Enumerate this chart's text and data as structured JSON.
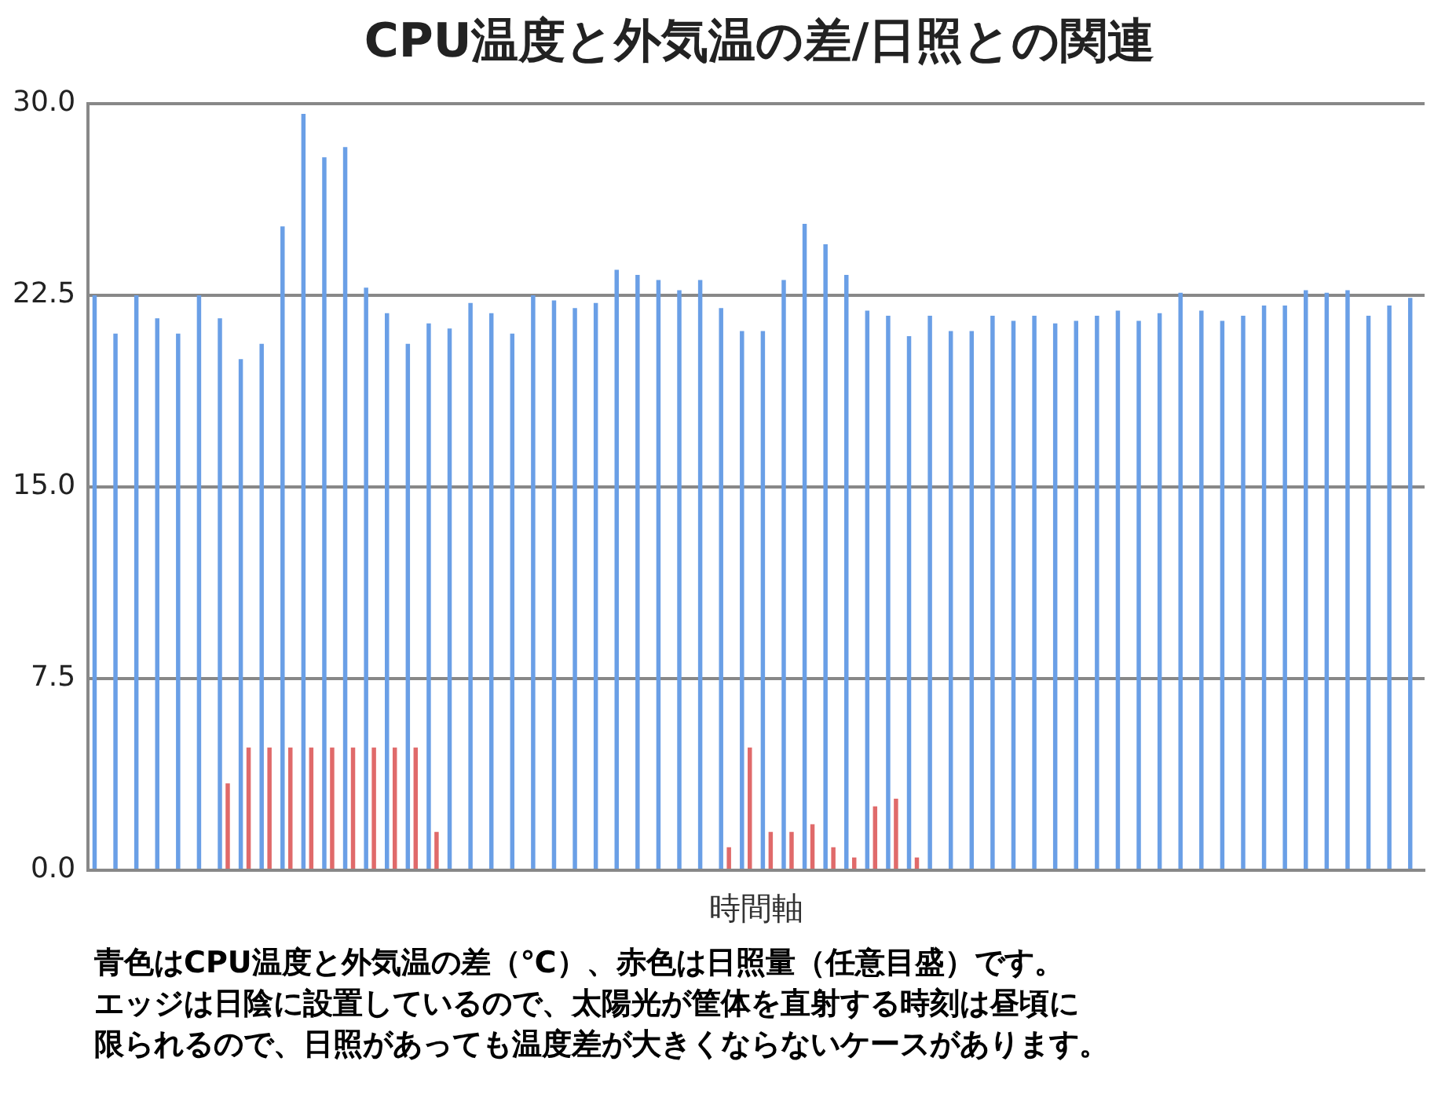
{
  "chart_data": {
    "type": "bar",
    "title": "CPU温度と外気温の差/日照との関連",
    "xlabel": "時間軸",
    "categories": [
      null,
      null,
      null,
      null,
      null,
      null,
      null,
      null,
      null,
      null,
      null,
      null,
      null,
      null,
      null,
      null,
      null,
      null,
      null,
      null,
      null,
      null,
      null,
      null,
      null,
      null,
      null,
      null,
      null,
      null,
      null,
      null,
      null,
      null,
      null,
      null,
      null,
      null,
      null,
      null,
      null,
      null,
      null,
      null,
      null,
      null,
      null,
      null,
      null,
      null,
      null,
      null,
      null,
      null,
      null,
      null,
      null,
      null,
      null,
      null,
      null,
      null,
      null,
      null
    ],
    "series": [
      {
        "color": "#6a9fe6",
        "values": [
          22.5,
          21.0,
          22.5,
          21.6,
          21.0,
          22.5,
          21.6,
          20.0,
          20.6,
          25.2,
          29.6,
          27.9,
          28.3,
          22.8,
          21.8,
          20.6,
          21.4,
          21.2,
          22.2,
          21.8,
          21.0,
          22.5,
          22.3,
          22.0,
          22.2,
          23.5,
          23.3,
          23.1,
          22.7,
          23.1,
          22.0,
          21.1,
          21.1,
          23.1,
          25.3,
          24.5,
          23.3,
          21.9,
          21.7,
          20.9,
          21.7,
          21.1,
          21.1,
          21.7,
          21.5,
          21.7,
          21.4,
          21.5,
          21.7,
          21.9,
          21.5,
          21.8,
          22.6,
          21.9,
          21.5,
          21.7,
          22.1,
          22.1,
          22.7,
          22.6,
          22.7,
          21.7,
          22.1,
          22.4
        ]
      },
      {
        "color": "#e06a6a",
        "values": [
          null,
          null,
          null,
          null,
          null,
          null,
          3.4,
          4.8,
          4.8,
          4.8,
          4.8,
          4.8,
          4.8,
          4.8,
          4.8,
          4.8,
          1.5,
          null,
          null,
          null,
          null,
          null,
          null,
          null,
          null,
          null,
          null,
          null,
          null,
          null,
          0.9,
          4.8,
          1.5,
          1.5,
          1.8,
          0.9,
          0.5,
          2.5,
          2.8,
          0.5,
          null,
          null,
          null,
          null,
          null,
          null,
          null,
          null,
          null,
          null,
          null,
          null,
          null,
          null,
          null,
          null,
          null,
          null,
          null,
          null,
          null,
          null,
          null,
          null
        ]
      }
    ],
    "ylim": [
      0,
      30
    ],
    "yticks": [
      {
        "value": 0,
        "label": "0.0"
      },
      {
        "value": 7.5,
        "label": "7.5"
      },
      {
        "value": 15,
        "label": "15.0"
      },
      {
        "value": 22.5,
        "label": "22.5"
      },
      {
        "value": 30,
        "label": "30.0"
      }
    ],
    "grid": "y",
    "annotations": [
      "青色はCPU温度と外気温の差（℃）、赤色は日照量（任意目盛）です。",
      "エッジは日陰に設置しているので、太陽光が筐体を直射する時刻は昼頃に",
      "限られるので、日照があっても温度差が大きくならないケースがあります。"
    ]
  }
}
